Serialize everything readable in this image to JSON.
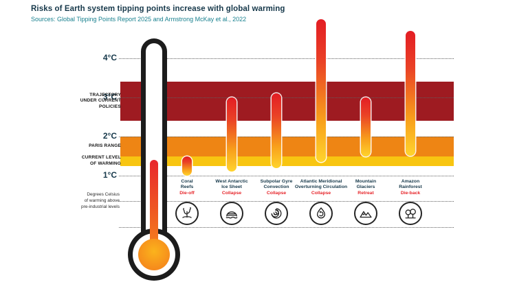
{
  "header": {
    "title": "Risks of Earth system tipping points increase with global warming",
    "source": "Sources: Global Tipping Points Report 2025 and Armstrong McKay et al., 2022"
  },
  "axis": {
    "ticks": [
      {
        "label": "4°C",
        "value": 4
      },
      {
        "label": "3°C",
        "value": 3
      },
      {
        "label": "2°C",
        "value": 2
      },
      {
        "label": "1°C",
        "value": 1
      }
    ],
    "note": "Degrees Celsius\nof warming above\npre-industrial levels"
  },
  "bands": [
    {
      "id": "trajectory",
      "label": "TRAJECTORY\nUNDER CURRENT\nPOLICIES",
      "from": 2.4,
      "to": 3.4,
      "color": "#9e1b21"
    },
    {
      "id": "paris",
      "label": "PARIS RANGE",
      "from": 1.5,
      "to": 2.0,
      "color": "#ee8514"
    },
    {
      "id": "current",
      "label": "CURRENT LEVEL\nOF WARMING",
      "from": 1.25,
      "to": 1.5,
      "color": "#f8c511"
    }
  ],
  "thermometer": {
    "fills_to": 1.4
  },
  "chart_data": {
    "type": "bar",
    "title": "Risks of Earth system tipping points increase with global warming",
    "ylabel": "Degrees Celsius of warming above pre-industrial levels",
    "unit": "°C",
    "ylim": [
      1,
      5
    ],
    "grid": "dotted horizontal lines at each degree",
    "series": [
      {
        "name": "Coral\nReefs",
        "impact": "Die-off",
        "min": 1.0,
        "max": 1.5,
        "icon": "coral-icon"
      },
      {
        "name": "West Antarctic\nIce Sheet",
        "impact": "Collapse",
        "min": 1.1,
        "max": 3.0,
        "icon": "ice-sheet-icon"
      },
      {
        "name": "Subpolar Gyre\nConvection",
        "impact": "Collapse",
        "min": 1.2,
        "max": 3.1,
        "icon": "gyre-icon"
      },
      {
        "name": "Atlantic Meridional\nOverturning Circulation",
        "impact": "Collapse",
        "min": 1.35,
        "max": 5.0,
        "icon": "amoc-icon"
      },
      {
        "name": "Mountain\nGlaciers",
        "impact": "Retreat",
        "min": 1.5,
        "max": 3.0,
        "icon": "mountain-glaciers-icon"
      },
      {
        "name": "Amazon\nRainforest",
        "impact": "Die-back",
        "min": 1.5,
        "max": 4.7,
        "icon": "rainforest-icon"
      }
    ]
  }
}
